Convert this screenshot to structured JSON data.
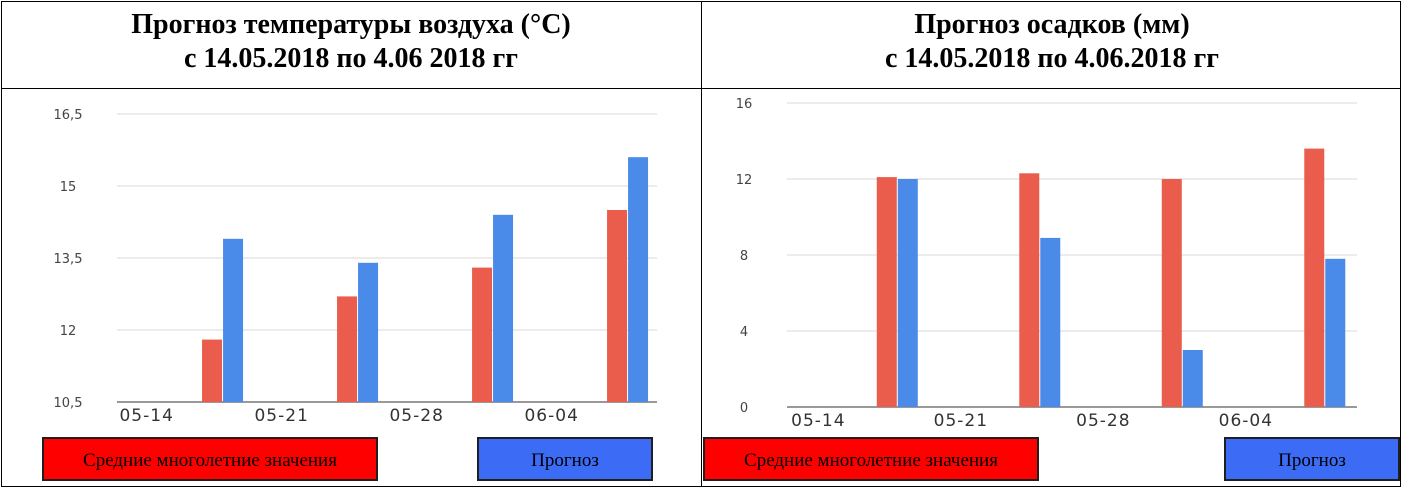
{
  "charts": [
    {
      "title_line1": "Прогноз температуры воздуха (°C)",
      "title_line2": "с 14.05.2018 по 4.06 2018 гг",
      "legend_avg": "Средние многолетние значения",
      "legend_forecast": "Прогноз"
    },
    {
      "title_line1": "Прогноз осадков (мм)",
      "title_line2": "с 14.05.2018 по 4.06.2018 гг",
      "legend_avg": "Средние многолетние значения",
      "legend_forecast": "Прогноз"
    }
  ],
  "colors": {
    "avg": "#ea5d4c",
    "forecast": "#4a8ae8",
    "legend_avg": "#ff0000",
    "legend_forecast": "#3c6cf5"
  },
  "chart_data": [
    {
      "type": "bar",
      "title": "Прогноз температуры воздуха (°C) с 14.05.2018 по 4.06 2018 гг",
      "categories": [
        "05-14",
        "05-21",
        "05-28",
        "06-04"
      ],
      "series": [
        {
          "name": "Средние многолетние значения",
          "values": [
            11.8,
            12.7,
            13.3,
            14.5
          ]
        },
        {
          "name": "Прогноз",
          "values": [
            13.9,
            13.4,
            14.4,
            15.6
          ]
        }
      ],
      "y_ticks": [
        "10,5",
        "12",
        "13,5",
        "15",
        "16,5"
      ],
      "ylim": [
        10.5,
        16.5
      ],
      "grid": true,
      "legend": "bottom"
    },
    {
      "type": "bar",
      "title": "Прогноз осадков (мм) с 14.05.2018 по 4.06.2018 гг",
      "categories": [
        "05-14",
        "05-21",
        "05-28",
        "06-04"
      ],
      "series": [
        {
          "name": "Средние многолетние значения",
          "values": [
            12.1,
            12.3,
            12.0,
            13.6
          ]
        },
        {
          "name": "Прогноз",
          "values": [
            12.0,
            8.9,
            3.0,
            7.8
          ]
        }
      ],
      "y_ticks": [
        "0",
        "4",
        "8",
        "12",
        "16"
      ],
      "ylim": [
        0,
        16
      ],
      "grid": true,
      "legend": "bottom"
    }
  ]
}
